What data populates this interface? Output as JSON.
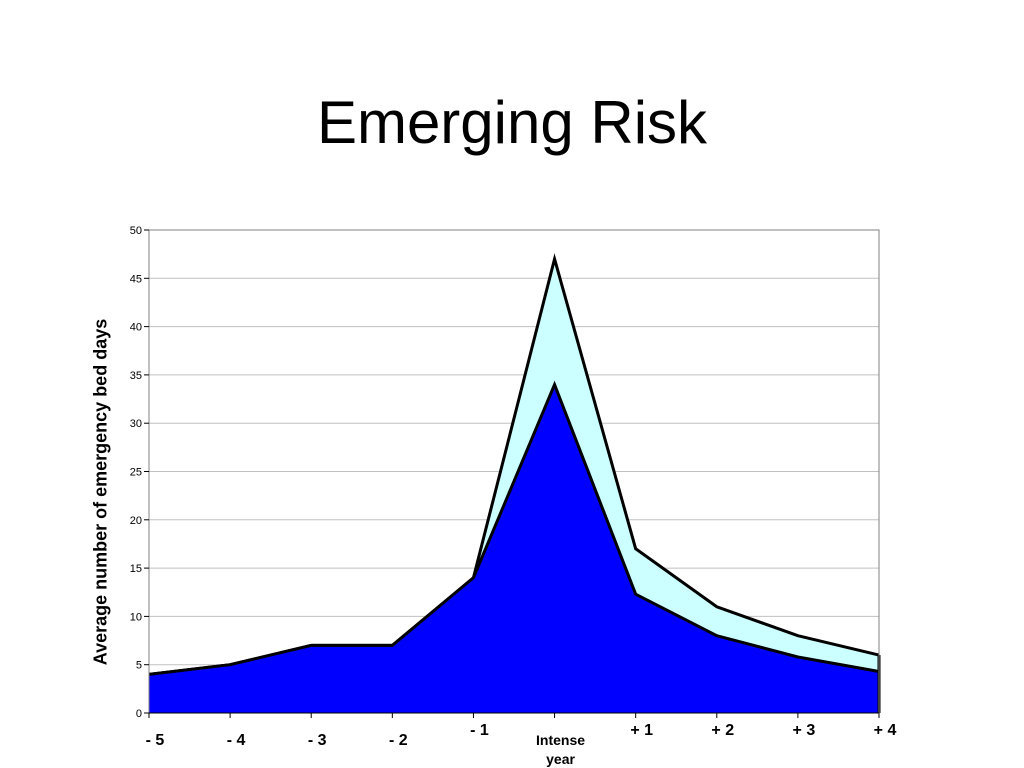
{
  "slide": {
    "title": "Emerging Risk"
  },
  "chart_data": {
    "type": "area",
    "ylabel": "Average number of emergency bed days",
    "xlabel": "",
    "ylim": [
      0,
      50
    ],
    "yticks": [
      0,
      5,
      10,
      15,
      20,
      25,
      30,
      35,
      40,
      45,
      50
    ],
    "grid": true,
    "categories": [
      "- 5",
      "- 4",
      "- 3",
      "- 2",
      "- 1",
      "Intense year",
      "+ 1",
      "+ 2",
      "+ 3",
      "+ 4"
    ],
    "series": [
      {
        "values": [
          4,
          5,
          7,
          7,
          14,
          47,
          17,
          11,
          8,
          6
        ],
        "color": "#ccffff"
      },
      {
        "values": [
          4,
          5,
          7,
          7,
          14,
          34,
          12.3,
          8,
          5.8,
          4.3
        ],
        "color": "#0000ff"
      }
    ]
  }
}
